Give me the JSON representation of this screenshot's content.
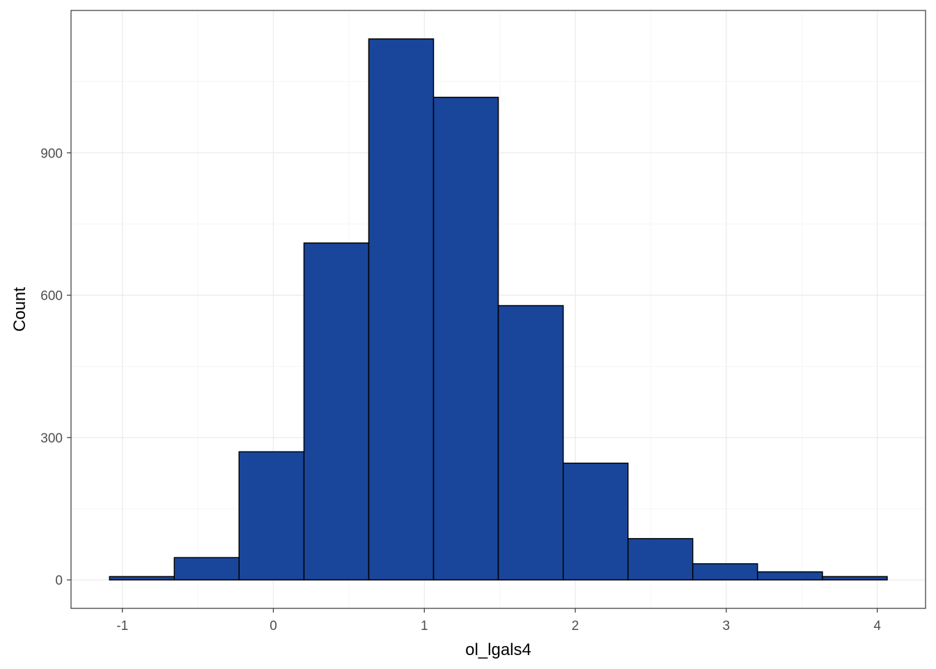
{
  "chart_data": {
    "type": "bar",
    "title": "",
    "xlabel": "ol_lgals4",
    "ylabel": "Count",
    "bin_edges": [
      -1.085,
      -0.656,
      -0.227,
      0.203,
      0.632,
      1.061,
      1.49,
      1.92,
      2.349,
      2.778,
      3.207,
      3.637,
      4.066
    ],
    "values": [
      7,
      47,
      270,
      710,
      1140,
      1017,
      578,
      246,
      87,
      34,
      17,
      7
    ],
    "xlim": [
      -1.34,
      4.32
    ],
    "ylim": [
      -60,
      1200
    ],
    "x_ticks": [
      -1,
      0,
      1,
      2,
      3,
      4
    ],
    "x_tick_labels": [
      "-1",
      "0",
      "1",
      "2",
      "3",
      "4"
    ],
    "y_ticks": [
      0,
      300,
      600,
      900
    ],
    "y_tick_labels": [
      "0",
      "300",
      "600",
      "900"
    ],
    "grid": true,
    "legend": "none",
    "colors": {
      "bar_fill": "#19469A",
      "bar_stroke": "#000000",
      "grid_major": "#EBEBEB",
      "grid_minor": "#F5F5F5",
      "panel_border": "#333333",
      "tick_text": "#4D4D4D"
    }
  }
}
